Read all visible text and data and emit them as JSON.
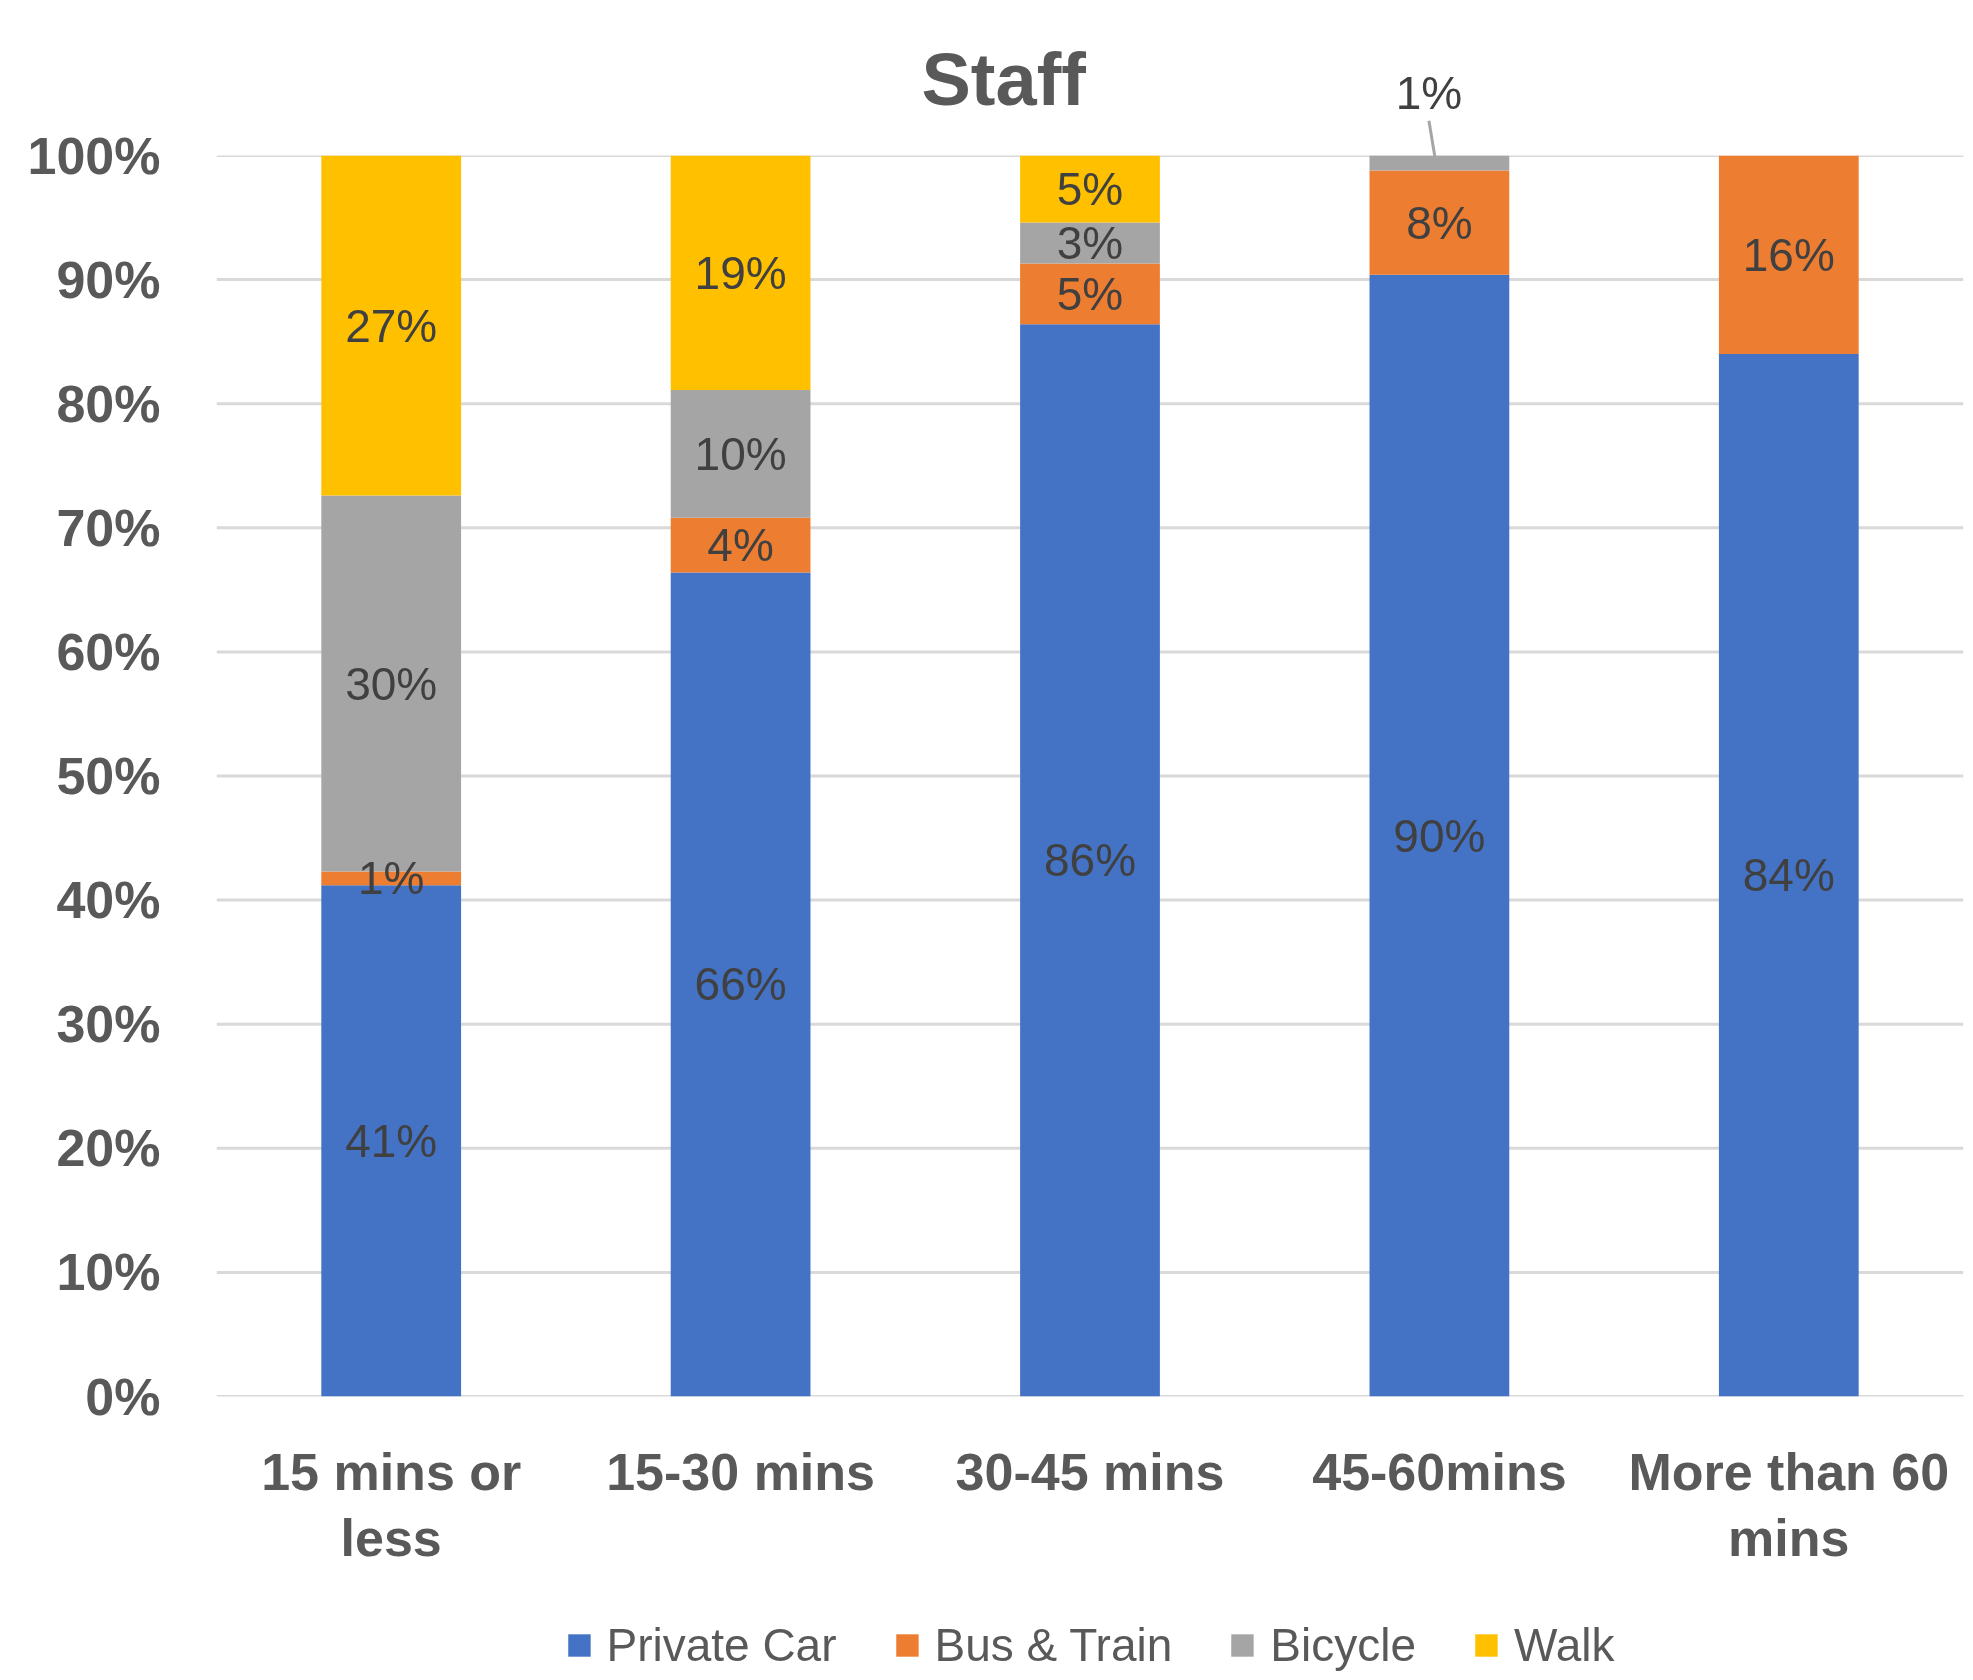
{
  "chart_data": {
    "type": "bar",
    "title": "Staff",
    "stacked": true,
    "categories": [
      "15 mins or less",
      "15-30 mins",
      "30-45 mins",
      "45-60mins",
      "More than 60 mins"
    ],
    "series": [
      {
        "name": "Private Car",
        "color": "#4472c4",
        "values": [
          41.2,
          66.4,
          86.4,
          90.4,
          84.0
        ],
        "value_labels": [
          "41%",
          "66%",
          "86%",
          "90%",
          "84%"
        ]
      },
      {
        "name": "Bus & Train",
        "color": "#ed7d31",
        "values": [
          1.1,
          4.4,
          4.9,
          8.4,
          16.0
        ],
        "value_labels": [
          "1%",
          "4%",
          "5%",
          "8%",
          "16%"
        ]
      },
      {
        "name": "Bicycle",
        "color": "#a5a5a5",
        "values": [
          30.3,
          10.3,
          3.3,
          1.2,
          0
        ],
        "value_labels": [
          "30%",
          "10%",
          "3%",
          "1%",
          null
        ]
      },
      {
        "name": "Walk",
        "color": "#ffc000",
        "values": [
          27.4,
          18.9,
          5.4,
          0,
          0
        ],
        "value_labels": [
          "27%",
          "19%",
          "5%",
          null,
          null
        ]
      }
    ],
    "ylim": [
      0,
      100
    ],
    "yticks": [
      {
        "value": 0,
        "label": "0%"
      },
      {
        "value": 10,
        "label": "10%"
      },
      {
        "value": 20,
        "label": "20%"
      },
      {
        "value": 30,
        "label": "30%"
      },
      {
        "value": 40,
        "label": "40%"
      },
      {
        "value": 50,
        "label": "50%"
      },
      {
        "value": 60,
        "label": "60%"
      },
      {
        "value": 70,
        "label": "70%"
      },
      {
        "value": 80,
        "label": "80%"
      },
      {
        "value": 90,
        "label": "90%"
      },
      {
        "value": 100,
        "label": "100%"
      }
    ],
    "grid": "y",
    "legend": "bottom"
  }
}
